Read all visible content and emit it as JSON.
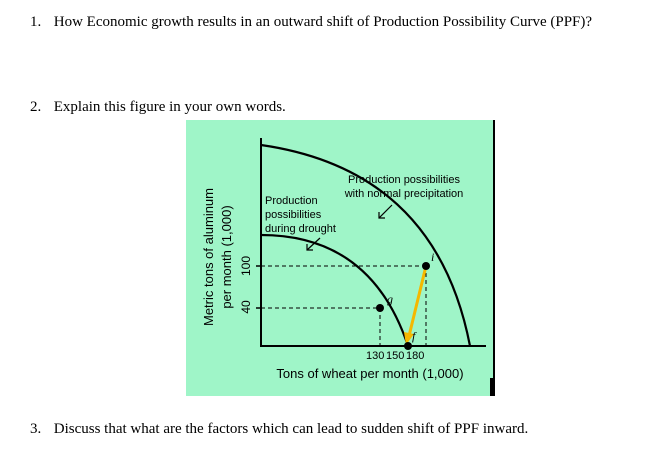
{
  "questions": [
    {
      "number": "1.",
      "text": "How Economic growth results in an outward shift of Production Possibility Curve (PPF)?"
    },
    {
      "number": "2.",
      "text": "Explain this figure in your own words."
    },
    {
      "number": "3.",
      "text": "Discuss that what are the factors which can lead to sudden shift of PPF inward."
    }
  ],
  "figure": {
    "background_color": "#9ff5c8",
    "arrow_color": "#f5b800",
    "ylabel_line1": "Metric tons of aluminum",
    "ylabel_line2": "per month (1,000)",
    "xlabel": "Tons of wheat per month (1,000)",
    "y_ticks": [
      "100",
      "40"
    ],
    "x_ticks": [
      "130",
      "150",
      "180"
    ],
    "normal_label": [
      "Production possibilities",
      "with normal precipitation"
    ],
    "drought_label": [
      "Production",
      "possibilities",
      "during drought"
    ],
    "point_labels": {
      "i": "i",
      "g": "g",
      "f": "f"
    }
  }
}
